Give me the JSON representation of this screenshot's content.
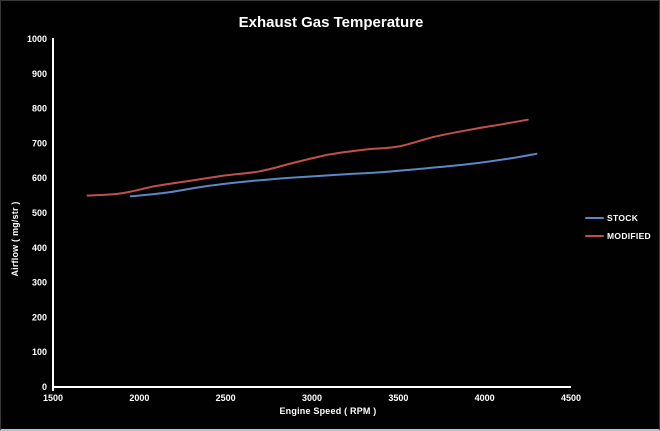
{
  "chart_data": {
    "type": "line",
    "title": "Exhaust Gas Temperature",
    "xlabel": "Engine Speed ( RPM )",
    "ylabel": "Airflow ( mg/str )",
    "xlim": [
      1500,
      4500
    ],
    "ylim": [
      0,
      1000
    ],
    "x_ticks": [
      1500,
      2000,
      2500,
      3000,
      3500,
      4000,
      4500
    ],
    "y_ticks": [
      0,
      100,
      200,
      300,
      400,
      500,
      600,
      700,
      800,
      900,
      1000
    ],
    "grid": false,
    "background_color": "#000000",
    "axis_color": "#ffffff",
    "text_color": "#ffffff",
    "legend_position": "right",
    "series": [
      {
        "name": "STOCK",
        "color": "#5b87c5",
        "points": [
          [
            1950,
            548
          ],
          [
            2150,
            558
          ],
          [
            2400,
            578
          ],
          [
            2650,
            592
          ],
          [
            2900,
            602
          ],
          [
            3150,
            610
          ],
          [
            3400,
            617
          ],
          [
            3650,
            628
          ],
          [
            3900,
            640
          ],
          [
            4150,
            657
          ],
          [
            4300,
            670
          ]
        ]
      },
      {
        "name": "MODIFIED",
        "color": "#c0504d",
        "points": [
          [
            1700,
            550
          ],
          [
            1900,
            557
          ],
          [
            2100,
            578
          ],
          [
            2300,
            593
          ],
          [
            2500,
            608
          ],
          [
            2700,
            620
          ],
          [
            2900,
            645
          ],
          [
            3100,
            668
          ],
          [
            3300,
            682
          ],
          [
            3500,
            691
          ],
          [
            3700,
            718
          ],
          [
            3900,
            738
          ],
          [
            4100,
            755
          ],
          [
            4250,
            768
          ]
        ]
      }
    ]
  }
}
